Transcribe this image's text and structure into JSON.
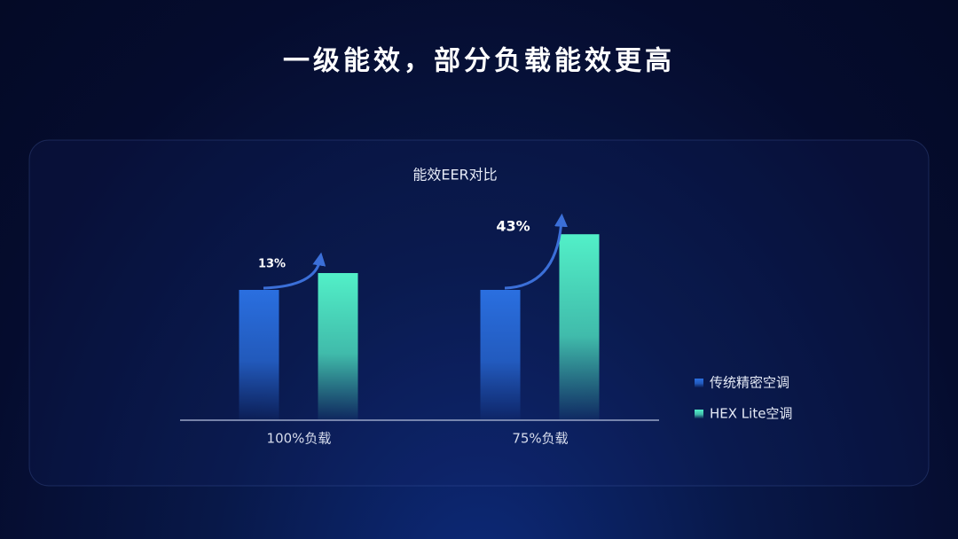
{
  "chart_data": {
    "type": "bar",
    "title": "一级能效，部分负载能效更高",
    "subtitle": "能效EER对比",
    "categories": [
      "100%负载",
      "75%负载"
    ],
    "series": [
      {
        "name": "传统精密空调",
        "color": "#2a6fe0",
        "values": [
          100,
          100
        ]
      },
      {
        "name": "HEX Lite空调",
        "color": "#52f0c8",
        "values": [
          113,
          143
        ]
      }
    ],
    "annotations": [
      "13%",
      "43%"
    ],
    "legend": "right"
  }
}
